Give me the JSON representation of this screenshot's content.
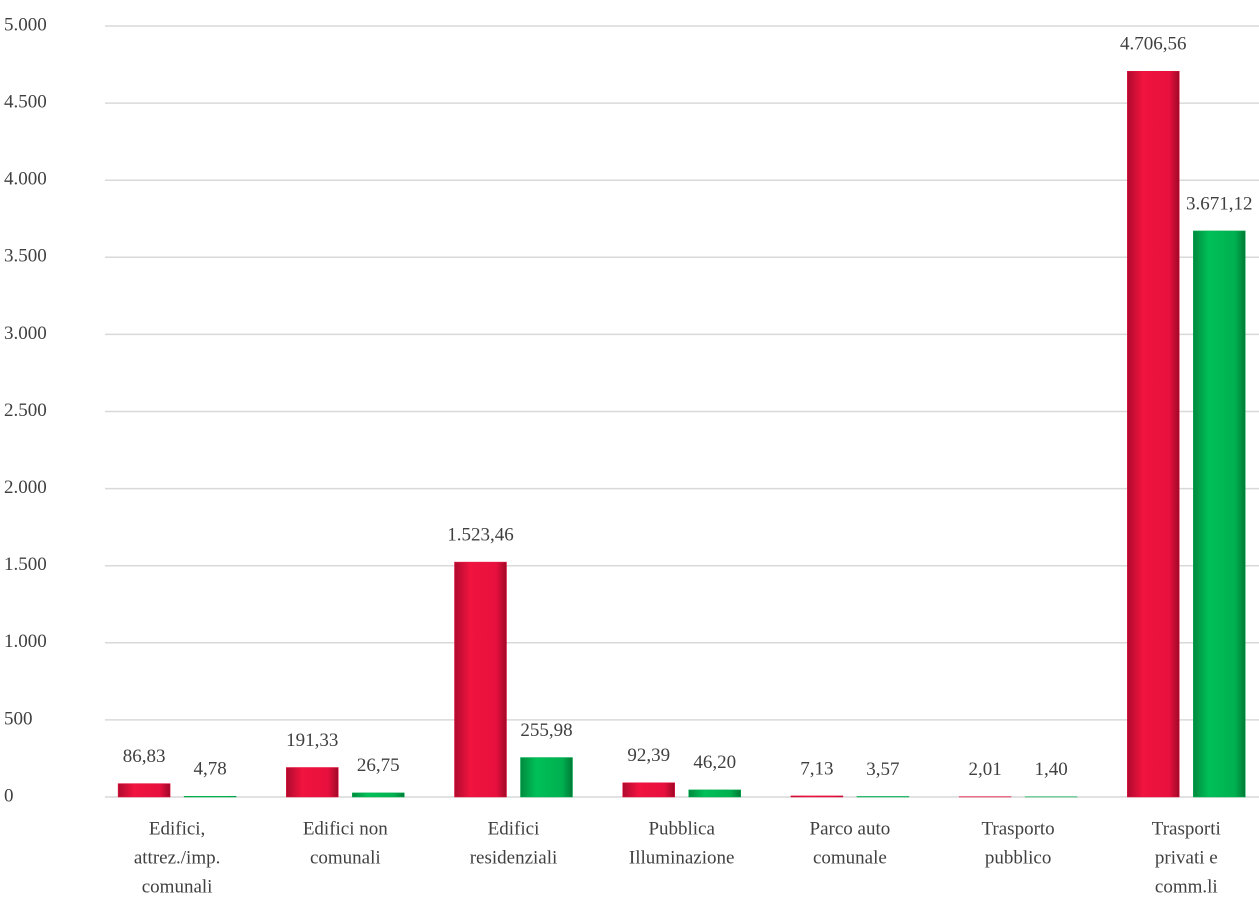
{
  "chart_data": {
    "type": "bar",
    "categories": [
      [
        "Edifici,",
        "attrez./imp.",
        "comunali"
      ],
      [
        "Edifici non",
        "comunali"
      ],
      [
        "Edifici",
        "residenziali"
      ],
      [
        "Pubblica",
        "Illuminazione"
      ],
      [
        "Parco auto",
        "comunale"
      ],
      [
        "Trasporto",
        "pubblico"
      ],
      [
        "Trasporti",
        "privati e",
        "comm.li"
      ]
    ],
    "series": [
      {
        "color": "#e8103e",
        "values": [
          86.83,
          191.33,
          1523.46,
          92.39,
          7.13,
          2.01,
          4706.56
        ],
        "value_labels": [
          "86,83",
          "191,33",
          "1.523,46",
          "92,39",
          "7,13",
          "2,01",
          "4.706,56"
        ]
      },
      {
        "color": "#00b050",
        "values": [
          4.78,
          26.75,
          255.98,
          46.2,
          3.57,
          1.4,
          3671.12
        ],
        "value_labels": [
          "4,78",
          "26,75",
          "255,98",
          "46,20",
          "3,57",
          "1,40",
          "3.671,12"
        ]
      }
    ],
    "ylim": [
      0,
      5000
    ],
    "yticks": [
      0,
      500,
      {
        "value": 1000,
        "label": "1.000"
      },
      {
        "value": 1500,
        "label": "1.500"
      },
      {
        "value": 2000,
        "label": "2.000"
      },
      {
        "value": 2500,
        "label": "2.500"
      },
      {
        "value": 3000,
        "label": "3.000"
      },
      {
        "value": 3500,
        "label": "3.500"
      },
      {
        "value": 4000,
        "label": "4.000"
      },
      {
        "value": 4500,
        "label": "4.500"
      },
      {
        "value": 5000,
        "label": "5.000"
      }
    ],
    "grid": true
  }
}
